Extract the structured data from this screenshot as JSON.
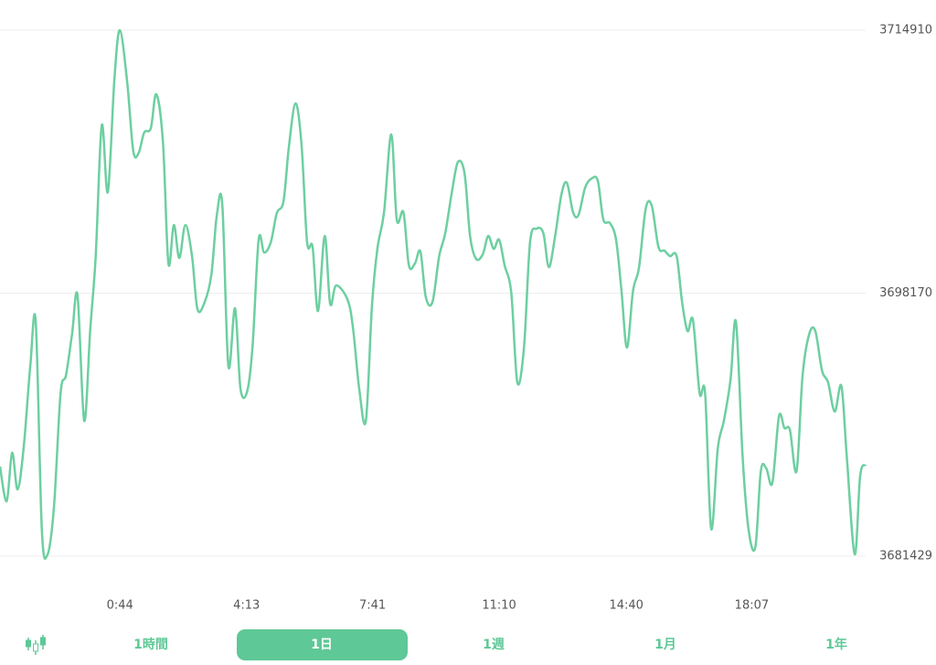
{
  "chart_data": {
    "type": "line",
    "color": "#6dcfa0",
    "x": [
      -154,
      -143,
      -134,
      -125,
      -115,
      -104,
      -95,
      -85,
      -76,
      -65,
      -54,
      -45,
      -35,
      -26,
      -15,
      -5,
      4,
      14,
      24,
      35,
      44,
      56,
      66,
      75,
      84,
      95,
      104,
      115,
      124,
      133,
      142,
      152,
      163,
      172,
      184,
      195,
      204,
      213,
      223,
      234,
      243,
      254,
      263,
      273,
      282,
      293,
      303,
      314,
      323,
      334,
      344,
      353,
      362,
      371,
      382,
      391,
      401,
      420,
      429,
      439,
      450,
      460,
      469,
      480,
      492,
      501,
      512,
      521,
      531,
      540,
      549,
      560,
      571,
      581,
      592,
      602,
      613,
      622,
      632,
      643,
      652,
      661,
      670,
      679,
      690,
      700,
      711,
      721,
      732,
      743,
      752,
      762,
      773,
      782,
      792,
      801,
      812,
      823,
      833,
      842,
      853,
      863,
      872,
      881,
      891,
      901,
      912,
      922,
      933,
      943,
      952,
      963,
      972,
      981,
      990,
      1001,
      1010,
      1020,
      1031,
      1041,
      1052,
      1061,
      1072,
      1082,
      1093,
      1102,
      1111,
      1121,
      1132,
      1141,
      1150,
      1161,
      1171,
      1182,
      1192,
      1203,
      1213,
      1224,
      1235,
      1244,
      1257,
      1266,
      1275
    ],
    "values": [
      3687134,
      3684922,
      3688008,
      3685679,
      3688299,
      3693540,
      3696335,
      3683175,
      3681486,
      3684514,
      3691793,
      3692957,
      3695578,
      3698023,
      3690046,
      3695869,
      3700527,
      3708854,
      3704603,
      3711882,
      3714910,
      3711591,
      3707224,
      3707107,
      3708388,
      3708679,
      3710834,
      3707806,
      3700061,
      3702507,
      3700411,
      3702507,
      3700527,
      3697150,
      3697616,
      3699363,
      3703148,
      3703788,
      3693540,
      3697208,
      3692084,
      3691909,
      3694821,
      3701575,
      3700760,
      3701401,
      3703264,
      3704021,
      3707515,
      3710252,
      3707515,
      3701401,
      3701109,
      3697033,
      3701808,
      3697499,
      3698664,
      3697732,
      3695869,
      3692084,
      3690046,
      3697325,
      3700993,
      3703322,
      3708272,
      3702856,
      3703322,
      3699945,
      3700061,
      3700818,
      3697907,
      3697616,
      3700527,
      3701983,
      3704603,
      3706525,
      3705768,
      3701808,
      3700352,
      3700644,
      3701808,
      3700993,
      3701575,
      3699945,
      3698198,
      3692491,
      3694704,
      3701401,
      3702274,
      3701983,
      3699828,
      3701692,
      3704487,
      3705186,
      3703322,
      3703148,
      3704894,
      3705477,
      3705302,
      3702856,
      3702623,
      3701575,
      3698314,
      3694704,
      3698314,
      3699828,
      3703555,
      3703730,
      3701109,
      3700877,
      3700527,
      3700527,
      3697616,
      3695752,
      3696451,
      3691793,
      3691793,
      3683175,
      3688299,
      3690046,
      3692666,
      3696335,
      3687717,
      3683058,
      3682010,
      3686843,
      3687018,
      3686086,
      3690337,
      3689580,
      3689463,
      3686843,
      3692957,
      3695578,
      3695752,
      3693248,
      3692491,
      3690628,
      3692259,
      3687717,
      3681544,
      3686552,
      3687251
    ],
    "xlim": [
      -154,
      1275
    ],
    "xticks": [
      {
        "value": 44,
        "label": "0:44"
      },
      {
        "value": 253,
        "label": "4:13"
      },
      {
        "value": 461,
        "label": "7:41"
      },
      {
        "value": 670,
        "label": "11:10"
      },
      {
        "value": 880,
        "label": "14:40"
      },
      {
        "value": 1087,
        "label": "18:07"
      }
    ],
    "ylim": [
      3681429,
      3714910
    ],
    "yticks": [
      3681429,
      3698170,
      3714910
    ],
    "grid": true
  },
  "tabs": {
    "items": [
      "1時間",
      "1日",
      "1週",
      "1月",
      "1年"
    ],
    "selected": 1,
    "color": "#5ec896"
  }
}
